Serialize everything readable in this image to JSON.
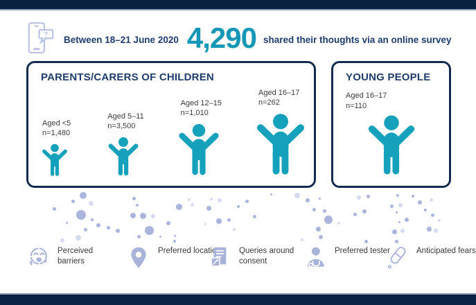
{
  "header": {
    "intro": "Between 18–21 June 2020",
    "count": "4,290",
    "suffix": "shared their thoughts via an online survey",
    "icon": "phone-question-icon"
  },
  "parents_box": {
    "title": "PARENTS/CARERS OF CHILDREN",
    "groups": [
      {
        "age": "Aged <5",
        "n": "n=1,480"
      },
      {
        "age": "Aged 5–11",
        "n": "n=3,500"
      },
      {
        "age": "Aged 12–15",
        "n": "n=1,010"
      },
      {
        "age": "Aged 16–17",
        "n": "n=262"
      }
    ]
  },
  "young_box": {
    "title": "YOUNG PEOPLE",
    "groups": [
      {
        "age": "Aged 16–17",
        "n": "n=110"
      }
    ]
  },
  "themes": [
    {
      "icon": "worried-face-icon",
      "label": "Perceived barriers"
    },
    {
      "icon": "location-pin-icon",
      "label": "Preferred location"
    },
    {
      "icon": "consent-document-icon",
      "label": "Queries around consent"
    },
    {
      "icon": "tester-person-icon",
      "label": "Preferred tester"
    },
    {
      "icon": "swab-icon",
      "label": "Anticipated fears"
    }
  ],
  "colors": {
    "navy_bar": "#0a2342",
    "bar_edge": "#8d9cb3",
    "heading_navy": "#1e3c6d",
    "accent_teal": "#1697b6",
    "person_teal": "#15a1bc",
    "lavender_icon": "#a9b3d9",
    "dot_dark": "#aab4dc",
    "dot_light": "#d6dbf0",
    "label_gray": "#3a3a3a"
  },
  "chart_data": {
    "type": "bar",
    "title": "Between 18–21 June 2020, 4,290 shared their thoughts via an online survey",
    "total_respondents": 4290,
    "series": [
      {
        "name": "Parents/carers of children",
        "categories": [
          "Aged <5",
          "Aged 5–11",
          "Aged 12–15",
          "Aged 16–17"
        ],
        "values": [
          1480,
          3500,
          1010,
          262
        ]
      },
      {
        "name": "Young people",
        "categories": [
          "Aged 16–17"
        ],
        "values": [
          110
        ]
      }
    ],
    "legend_position": "boxes",
    "notes": "pictogram infographic; person icon size scales with age group, not value"
  }
}
